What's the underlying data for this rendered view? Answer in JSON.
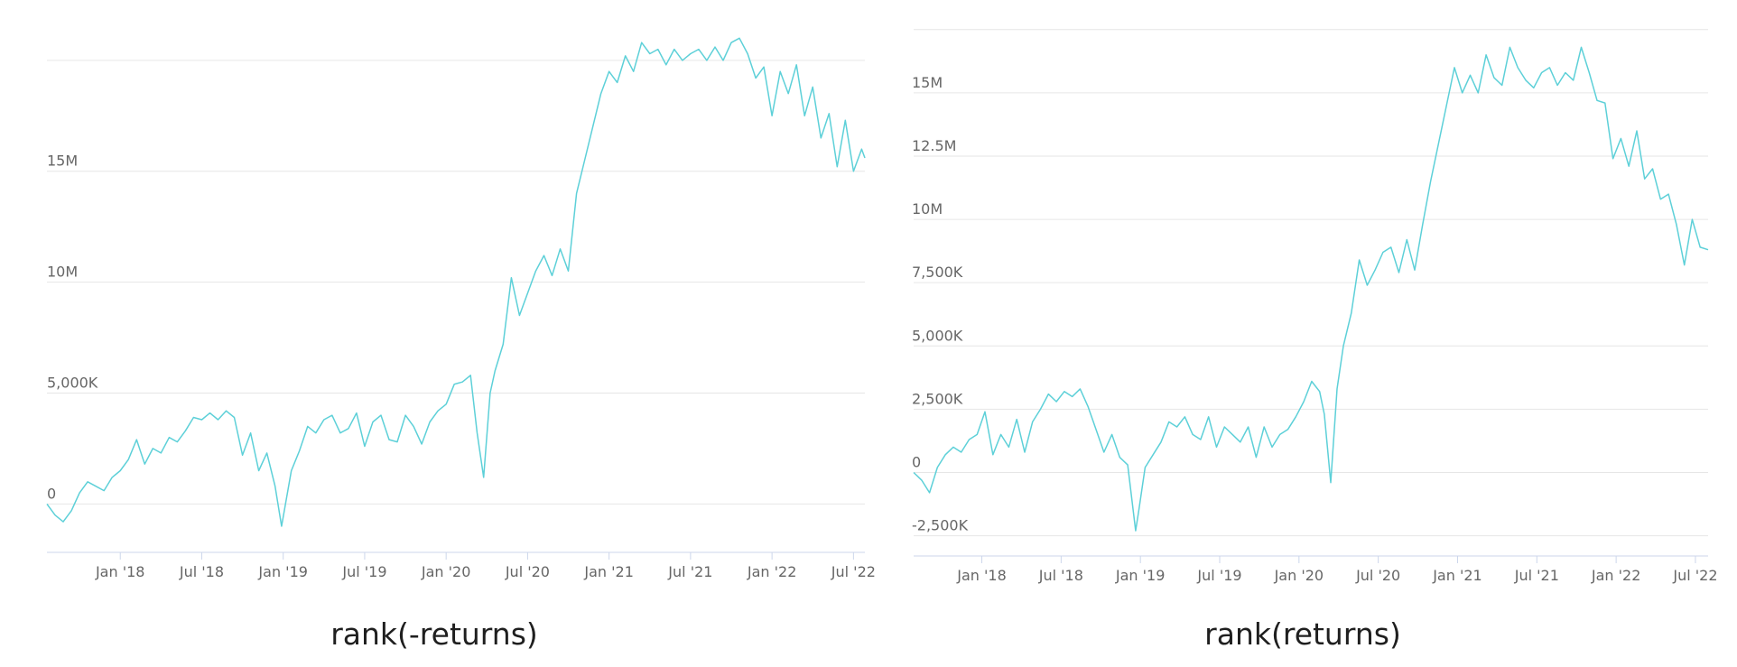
{
  "chart_data": [
    {
      "type": "line",
      "title": "rank(-returns)",
      "ylim": [
        -2100000,
        21500000
      ],
      "yticks": [
        {
          "value": 0,
          "label": "0"
        },
        {
          "value": 5000000,
          "label": "5,000K"
        },
        {
          "value": 10000000,
          "label": "10M"
        },
        {
          "value": 15000000,
          "label": "15M"
        },
        {
          "value": 20000000,
          "label": ""
        }
      ],
      "xticks": [
        {
          "value": 2018.0,
          "label": "Jan '18"
        },
        {
          "value": 2018.5,
          "label": "Jul '18"
        },
        {
          "value": 2019.0,
          "label": "Jan '19"
        },
        {
          "value": 2019.5,
          "label": "Jul '19"
        },
        {
          "value": 2020.0,
          "label": "Jan '20"
        },
        {
          "value": 2020.5,
          "label": "Jul '20"
        },
        {
          "value": 2021.0,
          "label": "Jan '21"
        },
        {
          "value": 2021.5,
          "label": "Jul '21"
        },
        {
          "value": 2022.0,
          "label": "Jan '22"
        },
        {
          "value": 2022.5,
          "label": "Jul '22"
        }
      ],
      "xlim": [
        2017.55,
        2022.57
      ],
      "grid": true,
      "color": "#5dd0d8",
      "series": [
        {
          "x": [
            2017.55,
            2017.6,
            2017.65,
            2017.7,
            2017.75,
            2017.8,
            2017.85,
            2017.9,
            2017.95,
            2018.0,
            2018.05,
            2018.1,
            2018.15,
            2018.2,
            2018.25,
            2018.3,
            2018.35,
            2018.4,
            2018.45,
            2018.5,
            2018.55,
            2018.6,
            2018.65,
            2018.7,
            2018.75,
            2018.8,
            2018.85,
            2018.9,
            2018.95,
            2018.99,
            2019.05,
            2019.1,
            2019.15,
            2019.2,
            2019.25,
            2019.3,
            2019.35,
            2019.4,
            2019.45,
            2019.5,
            2019.55,
            2019.6,
            2019.65,
            2019.7,
            2019.75,
            2019.8,
            2019.85,
            2019.9,
            2019.95,
            2020.0,
            2020.05,
            2020.1,
            2020.15,
            2020.19,
            2020.23,
            2020.27,
            2020.3,
            2020.35,
            2020.4,
            2020.45,
            2020.5,
            2020.55,
            2020.6,
            2020.65,
            2020.7,
            2020.75,
            2020.8,
            2020.85,
            2020.9,
            2020.95,
            2021.0,
            2021.05,
            2021.1,
            2021.15,
            2021.2,
            2021.25,
            2021.3,
            2021.35,
            2021.4,
            2021.45,
            2021.5,
            2021.55,
            2021.6,
            2021.65,
            2021.7,
            2021.75,
            2021.8,
            2021.85,
            2021.9,
            2021.95,
            2022.0,
            2022.05,
            2022.1,
            2022.15,
            2022.2,
            2022.25,
            2022.3,
            2022.35,
            2022.4,
            2022.45,
            2022.5,
            2022.55,
            2022.57
          ],
          "y": [
            0,
            -500000,
            -800000,
            -300000,
            500000,
            1000000,
            800000,
            600000,
            1200000,
            1500000,
            2000000,
            2900000,
            1800000,
            2500000,
            2300000,
            3000000,
            2800000,
            3300000,
            3900000,
            3800000,
            4100000,
            3800000,
            4200000,
            3900000,
            2200000,
            3200000,
            1500000,
            2300000,
            800000,
            -1000000,
            1500000,
            2400000,
            3500000,
            3200000,
            3800000,
            4000000,
            3200000,
            3400000,
            4100000,
            2600000,
            3700000,
            4000000,
            2900000,
            2800000,
            4000000,
            3500000,
            2700000,
            3700000,
            4200000,
            4500000,
            5400000,
            5500000,
            5800000,
            3200000,
            1200000,
            5000000,
            6000000,
            7200000,
            10200000,
            8500000,
            9500000,
            10500000,
            11200000,
            10300000,
            11500000,
            10500000,
            14000000,
            15500000,
            17000000,
            18500000,
            19500000,
            19000000,
            20200000,
            19500000,
            20800000,
            20300000,
            20500000,
            19800000,
            20500000,
            20000000,
            20300000,
            20500000,
            20000000,
            20600000,
            20000000,
            20800000,
            21000000,
            20300000,
            19200000,
            19700000,
            17500000,
            19500000,
            18500000,
            19800000,
            17500000,
            18800000,
            16500000,
            17600000,
            15200000,
            17300000,
            15000000,
            16000000,
            15600000
          ]
        }
      ]
    },
    {
      "type": "line",
      "title": "rank(returns)",
      "ylim": [
        -3300000,
        17600000
      ],
      "yticks": [
        {
          "value": -2500000,
          "label": "-2,500K"
        },
        {
          "value": 0,
          "label": "0"
        },
        {
          "value": 2500000,
          "label": "2,500K"
        },
        {
          "value": 5000000,
          "label": "5,000K"
        },
        {
          "value": 7500000,
          "label": "7,500K"
        },
        {
          "value": 10000000,
          "label": "10M"
        },
        {
          "value": 12500000,
          "label": "12.5M"
        },
        {
          "value": 15000000,
          "label": "15M"
        },
        {
          "value": 17500000,
          "label": ""
        }
      ],
      "xticks": [
        {
          "value": 2018.0,
          "label": "Jan '18"
        },
        {
          "value": 2018.5,
          "label": "Jul '18"
        },
        {
          "value": 2019.0,
          "label": "Jan '19"
        },
        {
          "value": 2019.5,
          "label": "Jul '19"
        },
        {
          "value": 2020.0,
          "label": "Jan '20"
        },
        {
          "value": 2020.5,
          "label": "Jul '20"
        },
        {
          "value": 2021.0,
          "label": "Jan '21"
        },
        {
          "value": 2021.5,
          "label": "Jul '21"
        },
        {
          "value": 2022.0,
          "label": "Jan '22"
        },
        {
          "value": 2022.5,
          "label": "Jul '22"
        }
      ],
      "xlim": [
        2017.57,
        2022.58
      ],
      "grid": true,
      "color": "#5dd0d8",
      "series": [
        {
          "x": [
            2017.57,
            2017.62,
            2017.67,
            2017.72,
            2017.77,
            2017.82,
            2017.87,
            2017.92,
            2017.97,
            2018.02,
            2018.07,
            2018.12,
            2018.17,
            2018.22,
            2018.27,
            2018.32,
            2018.37,
            2018.42,
            2018.47,
            2018.52,
            2018.57,
            2018.62,
            2018.67,
            2018.72,
            2018.77,
            2018.82,
            2018.87,
            2018.92,
            2018.97,
            2018.99,
            2019.03,
            2019.08,
            2019.13,
            2019.18,
            2019.23,
            2019.28,
            2019.33,
            2019.38,
            2019.43,
            2019.48,
            2019.53,
            2019.58,
            2019.63,
            2019.68,
            2019.73,
            2019.78,
            2019.83,
            2019.88,
            2019.93,
            2019.98,
            2020.03,
            2020.08,
            2020.13,
            2020.16,
            2020.2,
            2020.24,
            2020.28,
            2020.33,
            2020.38,
            2020.43,
            2020.48,
            2020.53,
            2020.58,
            2020.63,
            2020.68,
            2020.73,
            2020.78,
            2020.83,
            2020.88,
            2020.93,
            2020.98,
            2021.03,
            2021.08,
            2021.13,
            2021.18,
            2021.23,
            2021.28,
            2021.33,
            2021.38,
            2021.43,
            2021.48,
            2021.53,
            2021.58,
            2021.63,
            2021.68,
            2021.73,
            2021.78,
            2021.83,
            2021.88,
            2021.93,
            2021.98,
            2022.03,
            2022.08,
            2022.13,
            2022.18,
            2022.23,
            2022.28,
            2022.33,
            2022.38,
            2022.43,
            2022.48,
            2022.53,
            2022.58
          ],
          "y": [
            0,
            -300000,
            -800000,
            200000,
            700000,
            1000000,
            800000,
            1300000,
            1500000,
            2400000,
            700000,
            1500000,
            1000000,
            2100000,
            800000,
            2000000,
            2500000,
            3100000,
            2800000,
            3200000,
            3000000,
            3300000,
            2600000,
            1700000,
            800000,
            1500000,
            600000,
            300000,
            -2300000,
            -1500000,
            200000,
            700000,
            1200000,
            2000000,
            1800000,
            2200000,
            1500000,
            1300000,
            2200000,
            1000000,
            1800000,
            1500000,
            1200000,
            1800000,
            600000,
            1800000,
            1000000,
            1500000,
            1700000,
            2200000,
            2800000,
            3600000,
            3200000,
            2300000,
            -400000,
            3300000,
            5000000,
            6300000,
            8400000,
            7400000,
            8000000,
            8700000,
            8900000,
            7900000,
            9200000,
            8000000,
            9800000,
            11500000,
            13000000,
            14500000,
            16000000,
            15000000,
            15700000,
            15000000,
            16500000,
            15600000,
            15300000,
            16800000,
            16000000,
            15500000,
            15200000,
            15800000,
            16000000,
            15300000,
            15800000,
            15500000,
            16800000,
            15800000,
            14700000,
            14600000,
            12400000,
            13200000,
            12100000,
            13500000,
            11600000,
            12000000,
            10800000,
            11000000,
            9800000,
            8200000,
            10000000,
            8900000,
            8800000
          ]
        }
      ]
    }
  ]
}
